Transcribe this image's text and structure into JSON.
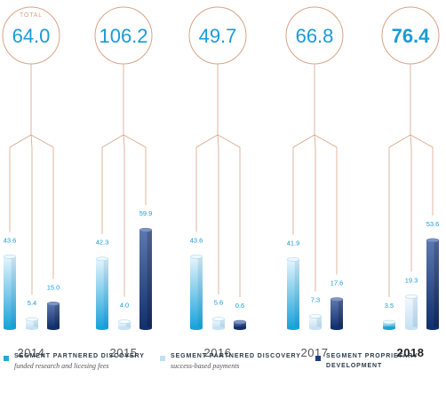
{
  "total_label": "TOTAL",
  "colors": {
    "series1": "#22a8dc",
    "series2": "#bfe0f4",
    "series3": "#1b3f7f",
    "circle": "#d8a487",
    "connector": "#d8a487",
    "value_text": "#1a9bd7",
    "year_text": "#555555"
  },
  "chart_data": {
    "type": "bar",
    "categories": [
      "2014",
      "2015",
      "2016",
      "2017",
      "2018"
    ],
    "totals": [
      "64.0",
      "106.2",
      "49.7",
      "66.8",
      "76.4"
    ],
    "highlight_year": "2018",
    "series": [
      {
        "name": "SEGMENT PARTNERED DISCOVERY",
        "subtitle": "funded research and licesing fees",
        "values": [
          43.6,
          42.3,
          43.6,
          41.9,
          3.5
        ],
        "labels": [
          "43.6",
          "42.3",
          "43.6",
          "41.9",
          "3.5"
        ]
      },
      {
        "name": "SEGMENT PARTNERED DISCOVERY",
        "subtitle": "success-based payments",
        "values": [
          5.4,
          4.0,
          5.6,
          7.3,
          19.3
        ],
        "labels": [
          "5.4",
          "4.0",
          "5.6",
          "7.3",
          "19.3"
        ]
      },
      {
        "name": "SEGMENT PROPRIETARY DEVELOPMENT",
        "subtitle": "",
        "values": [
          15.0,
          59.9,
          0.6,
          17.6,
          53.6
        ],
        "labels": [
          "15.0",
          "59.9",
          "0.6",
          "17.6",
          "53.6"
        ]
      }
    ]
  }
}
